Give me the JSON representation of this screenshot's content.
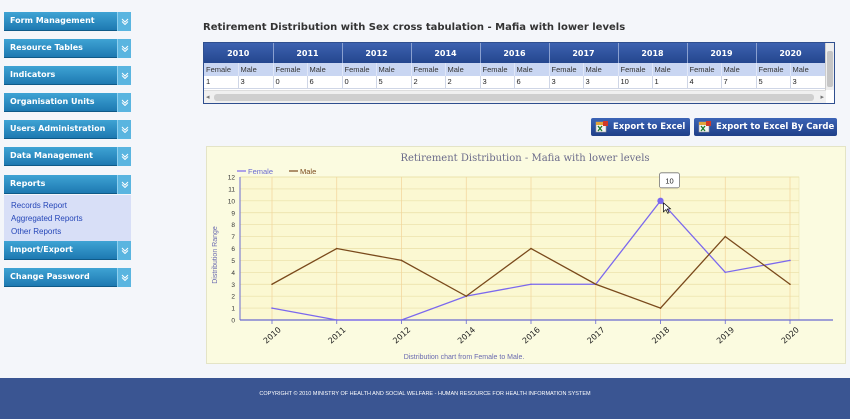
{
  "sidebar": {
    "items": [
      {
        "label": "Form Management"
      },
      {
        "label": "Resource Tables"
      },
      {
        "label": "Indicators"
      },
      {
        "label": "Organisation Units"
      },
      {
        "label": "Users Administration"
      },
      {
        "label": "Data Management"
      },
      {
        "label": "Reports"
      },
      {
        "label": "Import/Export"
      },
      {
        "label": "Change Password"
      }
    ],
    "reports_submenu": [
      "Records Report",
      "Aggregated Reports",
      "Other Reports"
    ]
  },
  "page": {
    "title": "Retirement Distribution with Sex cross tabulation - Mafia with lower levels"
  },
  "table": {
    "years": [
      "2010",
      "2011",
      "2012",
      "2014",
      "2016",
      "2017",
      "2018",
      "2019",
      "2020"
    ],
    "sex_labels": [
      "Female",
      "Male"
    ],
    "values": [
      [
        "1",
        "3"
      ],
      [
        "0",
        "6"
      ],
      [
        "0",
        "5"
      ],
      [
        "2",
        "2"
      ],
      [
        "3",
        "6"
      ],
      [
        "3",
        "3"
      ],
      [
        "10",
        "1"
      ],
      [
        "4",
        "7"
      ],
      [
        "5",
        "3"
      ]
    ]
  },
  "buttons": {
    "export_excel": "Export to Excel",
    "export_excel_carde": "Export to Excel By Carde"
  },
  "colors": {
    "female": "#7b68ee",
    "male": "#7a4a1c"
  },
  "chart_data": {
    "type": "line",
    "title": "Retirement Distribution - Mafia with lower levels",
    "xlabel": "Distribution chart from Female to Male.",
    "ylabel": "Distribution Range",
    "categories": [
      "2010",
      "2011",
      "2012",
      "2014",
      "2016",
      "2017",
      "2018",
      "2019",
      "2020"
    ],
    "series": [
      {
        "name": "Female",
        "values": [
          1,
          0,
          0,
          2,
          3,
          3,
          10,
          4,
          5
        ]
      },
      {
        "name": "Male",
        "values": [
          3,
          6,
          5,
          2,
          6,
          3,
          1,
          7,
          3
        ]
      }
    ],
    "ylim": [
      0,
      12
    ],
    "yticks": [
      "0",
      "1",
      "2",
      "3",
      "4",
      "5",
      "6",
      "7",
      "8",
      "9",
      "10",
      "11",
      "12"
    ],
    "grid": true,
    "legend": "top-left",
    "tooltip": "10"
  },
  "footer": {
    "text": "COPYRIGHT © 2010 MINISTRY OF HEALTH AND SOCIAL WELFARE - HUMAN RESOURCE FOR HEALTH INFORMATION SYSTEM"
  }
}
